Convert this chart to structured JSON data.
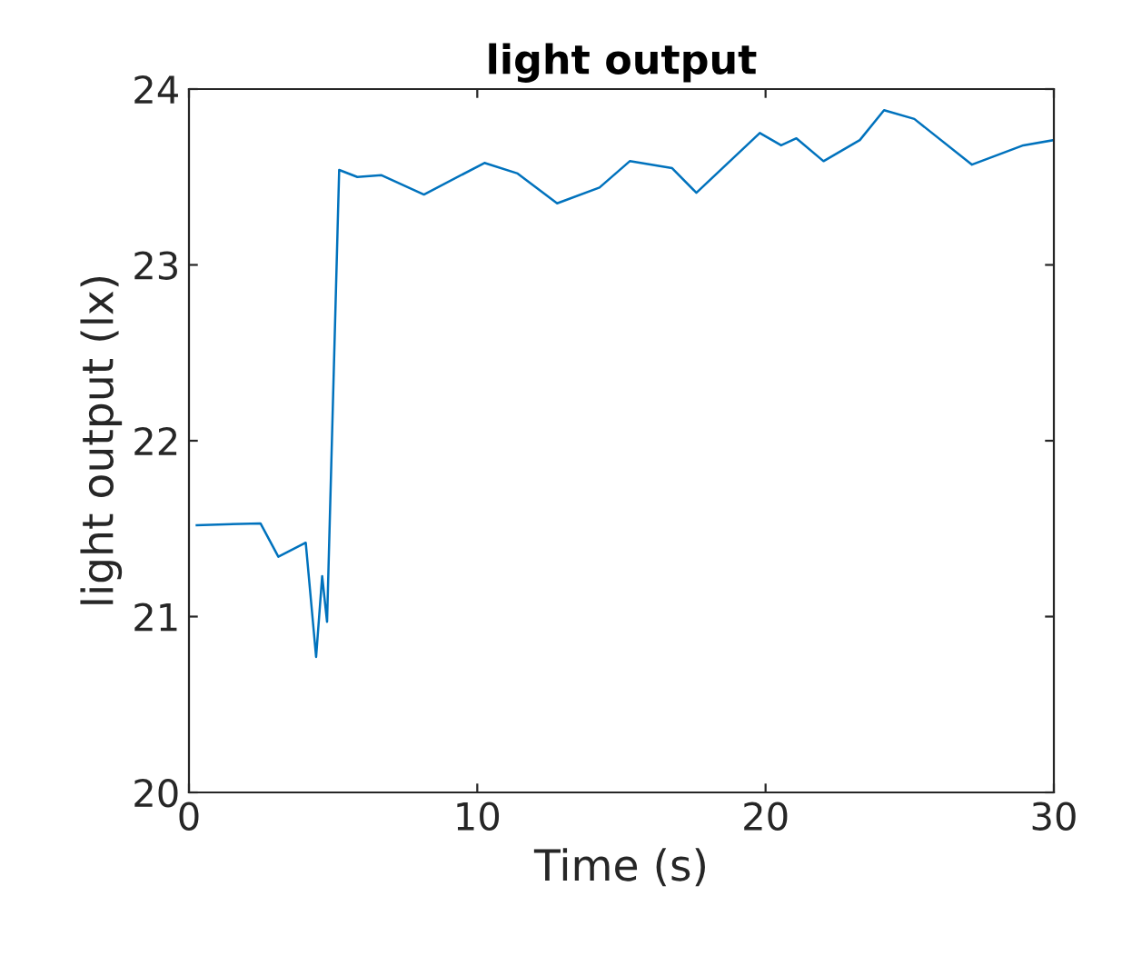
{
  "chart_data": {
    "type": "line",
    "title": "light output",
    "xlabel": "Time (s)",
    "ylabel": "light output (lx)",
    "xlim": [
      0,
      30
    ],
    "ylim": [
      20,
      24
    ],
    "xticks": [
      0,
      10,
      20,
      30
    ],
    "yticks": [
      20,
      21,
      22,
      23,
      24
    ],
    "grid": false,
    "legend": false,
    "series": [
      {
        "color": "#0072bd",
        "x": [
          0.27,
          2.48,
          3.1,
          4.05,
          4.41,
          4.62,
          4.79,
          5.21,
          5.84,
          6.68,
          8.15,
          10.25,
          11.4,
          12.77,
          14.24,
          15.29,
          16.76,
          17.6,
          19.8,
          20.54,
          21.07,
          22.01,
          23.27,
          24.11,
          25.16,
          27.16,
          28.94,
          30
        ],
        "values": [
          21.52,
          21.53,
          21.34,
          21.42,
          20.77,
          21.23,
          20.97,
          23.54,
          23.5,
          23.51,
          23.4,
          23.58,
          23.52,
          23.35,
          23.44,
          23.59,
          23.55,
          23.41,
          23.75,
          23.68,
          23.72,
          23.59,
          23.71,
          23.88,
          23.83,
          23.57,
          23.68,
          23.71
        ]
      }
    ]
  }
}
